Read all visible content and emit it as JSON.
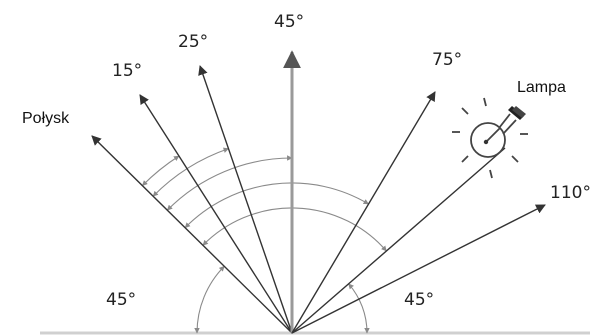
{
  "labels": {
    "gloss": "Połysk",
    "lamp": "Lampa",
    "angle_15": "15°",
    "angle_25": "25°",
    "angle_45_top": "45°",
    "angle_75": "75°",
    "angle_110": "110°",
    "angle_45_left": "45°",
    "angle_45_right": "45°"
  },
  "rays_deg": [
    45,
    60,
    70,
    90,
    120,
    150,
    155
  ],
  "colors": {
    "ray": "#333333",
    "center_ray": "#9a9a9a",
    "arc": "#8a8a8a"
  },
  "icons": {
    "lamp": "light-bulb-icon"
  }
}
